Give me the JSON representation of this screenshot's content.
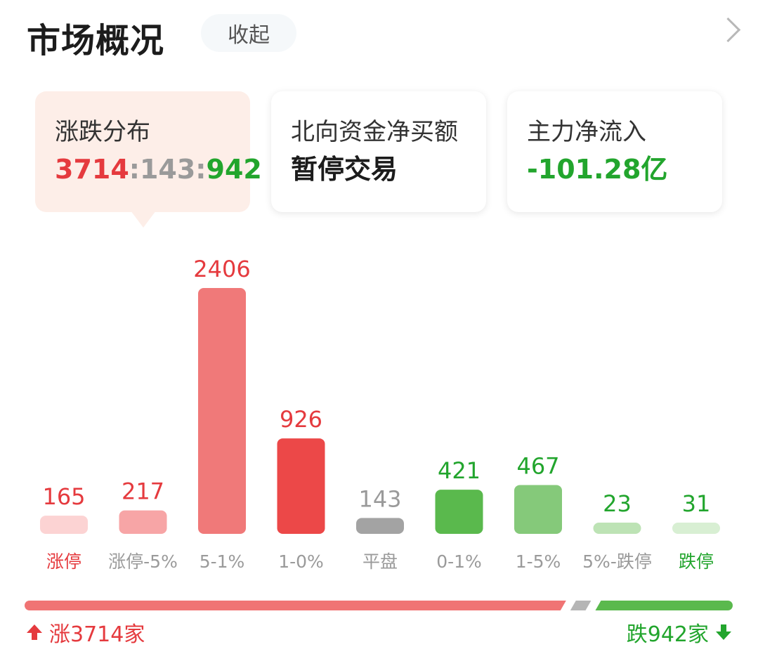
{
  "header": {
    "title": "市场概况",
    "collapse_label": "收起",
    "more_icon": "chevron-right-icon"
  },
  "cards": {
    "distribution": {
      "label": "涨跌分布",
      "up": "3714",
      "sep1": ":",
      "flat": "143",
      "sep2": ":",
      "down": "942"
    },
    "northbound": {
      "label": "北向资金净买额",
      "value": "暂停交易"
    },
    "main_flow": {
      "label": "主力净流入",
      "value": "-101.28亿"
    }
  },
  "chart_data": {
    "type": "bar",
    "categories": [
      "涨停",
      "涨停-5%",
      "5-1%",
      "1-0%",
      "平盘",
      "0-1%",
      "1-5%",
      "5%-跌停",
      "跌停"
    ],
    "values": [
      165,
      217,
      2406,
      926,
      143,
      421,
      467,
      23,
      31
    ],
    "bar_colors": [
      "#fcd3d3",
      "#f7a5a6",
      "#f07979",
      "#ec4848",
      "#a3a3a3",
      "#5ab94d",
      "#85c97a",
      "#bde3b5",
      "#d8efd3"
    ],
    "value_colors": [
      "#e53a3e",
      "#e53a3e",
      "#e53a3e",
      "#e53a3e",
      "#9a9a9a",
      "#22a52d",
      "#22a52d",
      "#22a52d",
      "#22a52d"
    ],
    "category_colors": [
      "#e53a3e",
      "#9a9a9a",
      "#9a9a9a",
      "#9a9a9a",
      "#9a9a9a",
      "#9a9a9a",
      "#9a9a9a",
      "#9a9a9a",
      "#22a52d"
    ]
  },
  "breadth": {
    "up_count": 3714,
    "flat_count": 143,
    "down_count": 942,
    "up_label": "涨3714家",
    "down_label": "跌942家",
    "up_color": "#f07474",
    "flat_color": "#b5b5b5",
    "down_color": "#5ab94d"
  }
}
